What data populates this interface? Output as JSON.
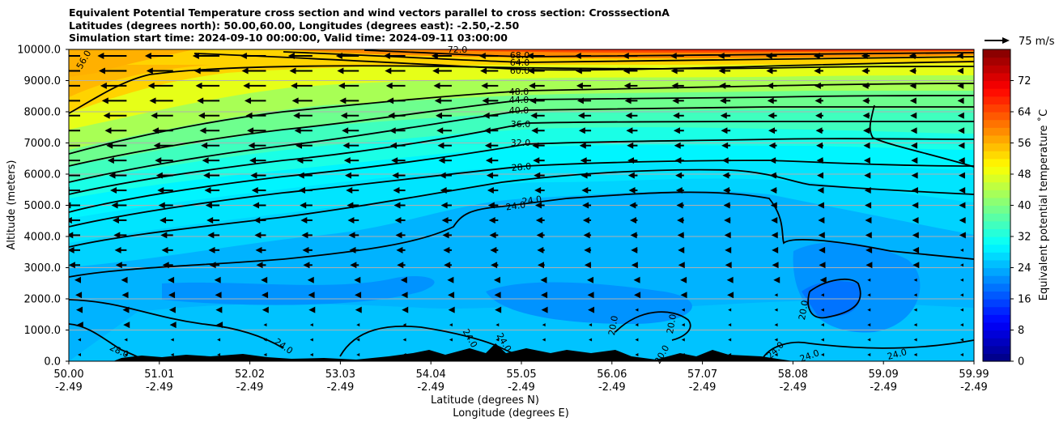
{
  "title_lines": [
    "Equivalent Potential Temperature cross section and wind vectors parallel to cross section: CrosssectionA",
    "Latitudes (degrees north): 50.00,60.00, Longitudes (degrees east): -2.50,-2.50",
    "Simulation start time: 2024-09-10 00:00:00, Valid time: 2024-09-11 03:00:00"
  ],
  "chart_data": {
    "type": "contourf",
    "xlabel": "Latitude (degrees N)",
    "xlabel2": "Longitude (degrees E)",
    "ylabel": "Altitude (meters)",
    "xlim": [
      50.0,
      59.99
    ],
    "ylim": [
      0,
      10000
    ],
    "x_ticks": [
      {
        "lat": "50.00",
        "lon": "-2.49"
      },
      {
        "lat": "51.01",
        "lon": "-2.49"
      },
      {
        "lat": "52.02",
        "lon": "-2.49"
      },
      {
        "lat": "53.03",
        "lon": "-2.49"
      },
      {
        "lat": "54.04",
        "lon": "-2.49"
      },
      {
        "lat": "55.05",
        "lon": "-2.49"
      },
      {
        "lat": "56.06",
        "lon": "-2.49"
      },
      {
        "lat": "57.07",
        "lon": "-2.49"
      },
      {
        "lat": "58.08",
        "lon": "-2.49"
      },
      {
        "lat": "59.09",
        "lon": "-2.49"
      },
      {
        "lat": "59.99",
        "lon": "-2.49"
      }
    ],
    "y_ticks": [
      "0.0",
      "1000.0",
      "2000.0",
      "3000.0",
      "4000.0",
      "5000.0",
      "6000.0",
      "7000.0",
      "8000.0",
      "9000.0",
      "10000.0"
    ],
    "grid": "horizontal",
    "colorbar": {
      "label": "Equivalent potential temperature ˚C",
      "range": [
        0,
        80
      ],
      "ticks": [
        "0",
        "8",
        "16",
        "24",
        "32",
        "40",
        "48",
        "56",
        "64",
        "72"
      ],
      "colormap": "jet"
    },
    "quiver_key": "75 m/s",
    "contours": [
      {
        "level": "20.0",
        "labels": [
          "20.0",
          "20.0",
          "20.0",
          "20.0"
        ]
      },
      {
        "level": "24.0",
        "labels": [
          "24.0",
          "24.0",
          "24.0",
          "24.0",
          "24.0",
          "24.0",
          "24.0",
          "24.0"
        ]
      },
      {
        "level": "28.0",
        "labels": [
          "28.0",
          "28.0"
        ]
      },
      {
        "level": "32.0",
        "labels": [
          "32.0"
        ]
      },
      {
        "level": "36.0",
        "labels": [
          "36.0"
        ]
      },
      {
        "level": "40.0",
        "labels": [
          "40.0"
        ]
      },
      {
        "level": "44.0",
        "labels": [
          "44.0"
        ]
      },
      {
        "level": "48.0",
        "labels": [
          "48.0"
        ]
      },
      {
        "level": "56.0",
        "labels": [
          "56.0"
        ]
      },
      {
        "level": "60.0",
        "labels": [
          "60.0"
        ]
      },
      {
        "level": "64.0",
        "labels": [
          "64.0"
        ]
      },
      {
        "level": "68.0",
        "labels": [
          "68.0"
        ]
      },
      {
        "level": "72.0",
        "labels": [
          "72.0"
        ]
      }
    ]
  }
}
